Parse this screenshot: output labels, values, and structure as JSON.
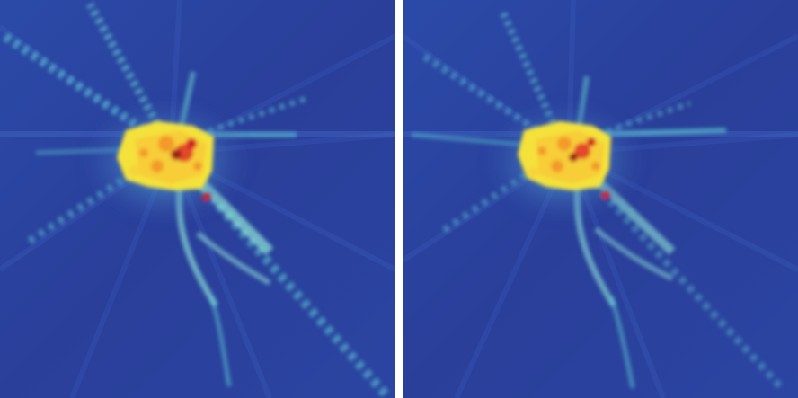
{
  "figure": {
    "panels": [
      {
        "id": "left",
        "colormap": "jet"
      },
      {
        "id": "right",
        "colormap": "jet"
      }
    ],
    "colors": {
      "background_blue": "#2a3f9a",
      "mid_blue": "#3a57b6",
      "cyan": "#5fd0d6",
      "light_cyan": "#a8ecd9",
      "yellow": "#f4e23a",
      "orange": "#f39a2a",
      "red": "#d2222a",
      "dark_red": "#7a0f12",
      "divider": "#ffffff"
    }
  }
}
